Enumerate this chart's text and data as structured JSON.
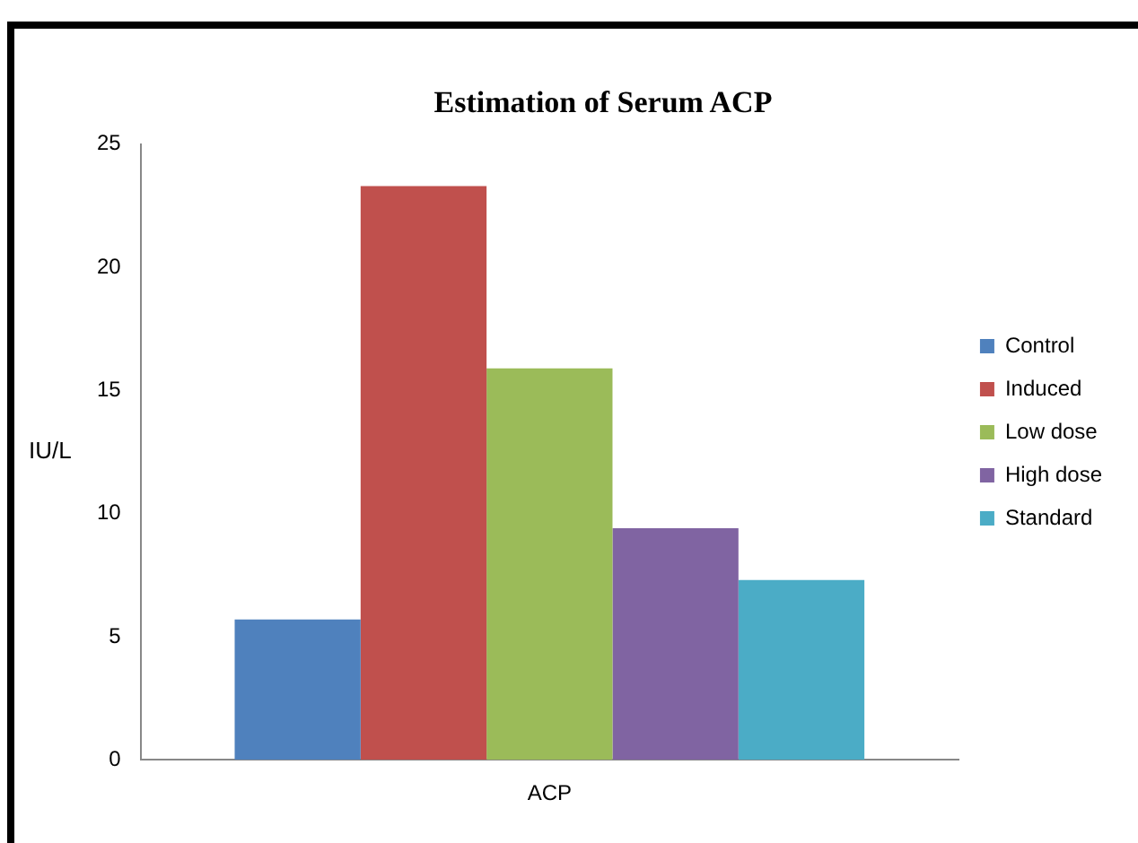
{
  "chart_data": {
    "type": "bar",
    "title": "Estimation of Serum ACP",
    "ylabel": "IU/L",
    "categories": [
      "ACP"
    ],
    "series": [
      {
        "name": "Control",
        "color": "#4f81bd",
        "values": [
          5.7
        ]
      },
      {
        "name": "Induced",
        "color": "#c0504d",
        "values": [
          23.3
        ]
      },
      {
        "name": "Low dose",
        "color": "#9bbb59",
        "values": [
          15.9
        ]
      },
      {
        "name": "High dose",
        "color": "#8064a2",
        "values": [
          9.4
        ]
      },
      {
        "name": "Standard",
        "color": "#4bacc6",
        "values": [
          7.3
        ]
      }
    ],
    "ylim": [
      0,
      25
    ],
    "yticks": [
      0,
      5,
      10,
      15,
      20,
      25
    ],
    "grid": false,
    "legend": "right"
  }
}
